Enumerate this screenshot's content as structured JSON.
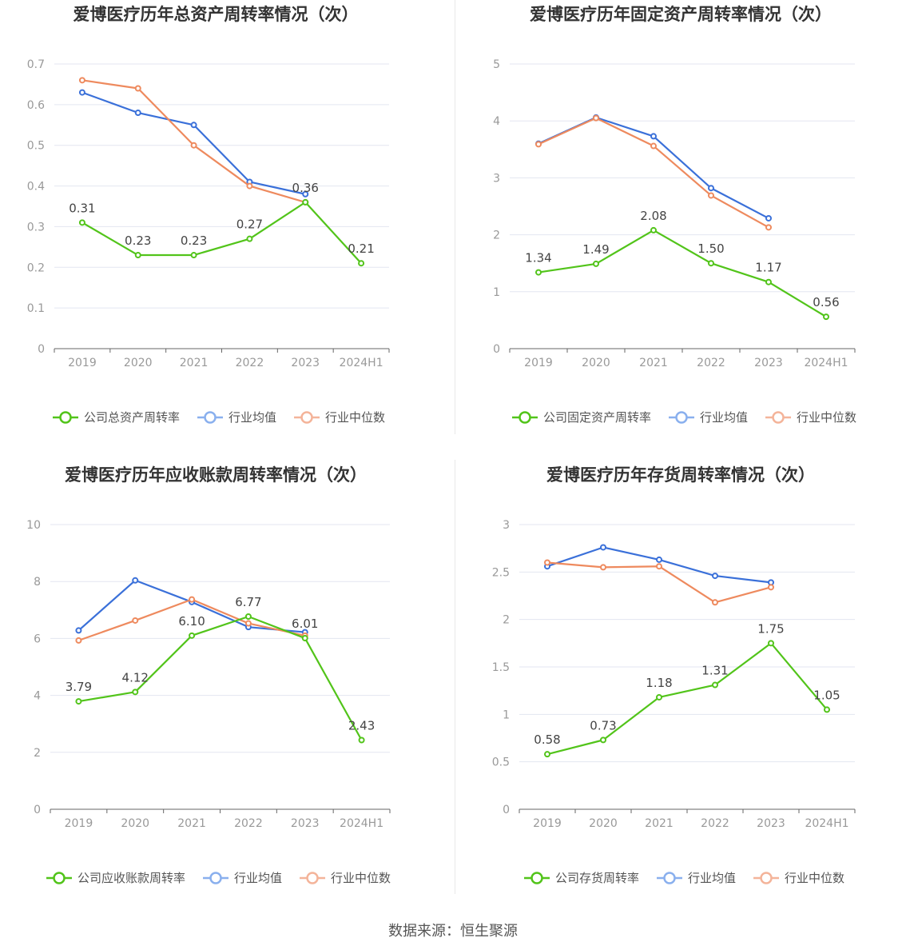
{
  "source_text": "数据来源：恒生聚源",
  "colors": {
    "company": "#52c41a",
    "industry_avg": "#3a70d9",
    "industry_median": "#ee8a5e",
    "legend_avg": "#8ab0ee",
    "legend_median": "#f4b49a",
    "grid": "#e3e6f0",
    "axis": "#666666",
    "tick_text": "#999999",
    "label_text": "#444444",
    "title_text": "#333333"
  },
  "chart_data": [
    {
      "type": "line",
      "title": "爱博医疗历年总资产周转率情况（次）",
      "categories": [
        "2019",
        "2020",
        "2021",
        "2022",
        "2023",
        "2024H1"
      ],
      "ylim": [
        0,
        0.7
      ],
      "yticks": [
        "0",
        "0.1",
        "0.2",
        "0.3",
        "0.4",
        "0.5",
        "0.6",
        "0.7"
      ],
      "series": [
        {
          "name": "公司总资产周转率",
          "key": "company",
          "values": [
            0.31,
            0.23,
            0.23,
            0.27,
            0.36,
            0.21
          ],
          "labels": [
            "0.31",
            "0.23",
            "0.23",
            "0.27",
            "0.36",
            "0.21"
          ]
        },
        {
          "name": "行业均值",
          "key": "industry_avg",
          "values": [
            0.63,
            0.58,
            0.55,
            0.41,
            0.38,
            null
          ]
        },
        {
          "name": "行业中位数",
          "key": "industry_median",
          "values": [
            0.66,
            0.64,
            0.5,
            0.4,
            0.36,
            null
          ]
        }
      ],
      "legend_position": "bottom"
    },
    {
      "type": "line",
      "title": "爱博医疗历年固定资产周转率情况（次）",
      "categories": [
        "2019",
        "2020",
        "2021",
        "2022",
        "2023",
        "2024H1"
      ],
      "ylim": [
        0,
        5
      ],
      "yticks": [
        "0",
        "1",
        "2",
        "3",
        "4",
        "5"
      ],
      "series": [
        {
          "name": "公司固定资产周转率",
          "key": "company",
          "values": [
            1.34,
            1.49,
            2.08,
            1.5,
            1.17,
            0.56
          ],
          "labels": [
            "1.34",
            "1.49",
            "2.08",
            "1.50",
            "1.17",
            "0.56"
          ]
        },
        {
          "name": "行业均值",
          "key": "industry_avg",
          "values": [
            3.6,
            4.06,
            3.73,
            2.82,
            2.29,
            null
          ]
        },
        {
          "name": "行业中位数",
          "key": "industry_median",
          "values": [
            3.59,
            4.05,
            3.56,
            2.69,
            2.13,
            null
          ]
        }
      ],
      "legend_position": "bottom"
    },
    {
      "type": "line",
      "title": "爱博医疗历年应收账款周转率情况（次）",
      "categories": [
        "2019",
        "2020",
        "2021",
        "2022",
        "2023",
        "2024H1"
      ],
      "ylim": [
        0,
        10
      ],
      "yticks": [
        "0",
        "2",
        "4",
        "6",
        "8",
        "10"
      ],
      "series": [
        {
          "name": "公司应收账款周转率",
          "key": "company",
          "values": [
            3.79,
            4.12,
            6.1,
            6.77,
            6.01,
            2.43
          ],
          "labels": [
            "3.79",
            "4.12",
            "6.10",
            "6.77",
            "6.01",
            "2.43"
          ]
        },
        {
          "name": "行业均值",
          "key": "industry_avg",
          "values": [
            6.28,
            8.04,
            7.28,
            6.4,
            6.22,
            null
          ]
        },
        {
          "name": "行业中位数",
          "key": "industry_median",
          "values": [
            5.93,
            6.63,
            7.37,
            6.53,
            6.1,
            null
          ]
        }
      ],
      "legend_position": "bottom"
    },
    {
      "type": "line",
      "title": "爱博医疗历年存货周转率情况（次）",
      "categories": [
        "2019",
        "2020",
        "2021",
        "2022",
        "2023",
        "2024H1"
      ],
      "ylim": [
        0,
        3
      ],
      "yticks": [
        "0",
        "0.5",
        "1",
        "1.5",
        "2",
        "2.5",
        "3"
      ],
      "series": [
        {
          "name": "公司存货周转率",
          "key": "company",
          "values": [
            0.58,
            0.73,
            1.18,
            1.31,
            1.75,
            1.05
          ],
          "labels": [
            "0.58",
            "0.73",
            "1.18",
            "1.31",
            "1.75",
            "1.05"
          ]
        },
        {
          "name": "行业均值",
          "key": "industry_avg",
          "values": [
            2.56,
            2.76,
            2.63,
            2.46,
            2.39,
            null
          ]
        },
        {
          "name": "行业中位数",
          "key": "industry_median",
          "values": [
            2.6,
            2.55,
            2.56,
            2.18,
            2.34,
            null
          ]
        }
      ],
      "legend_position": "bottom"
    }
  ]
}
